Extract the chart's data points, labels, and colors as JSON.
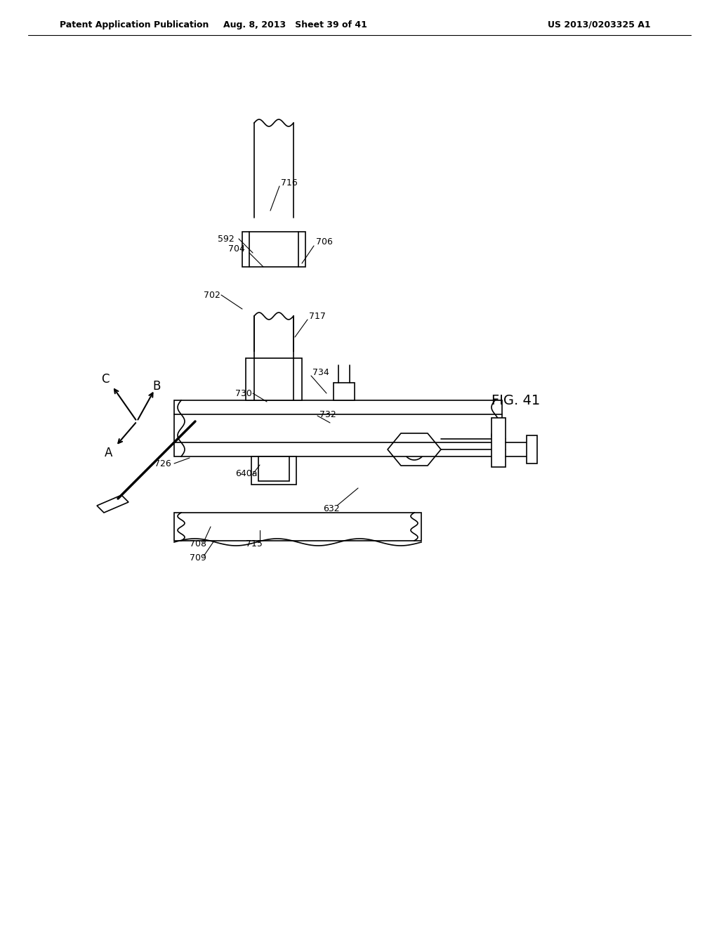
{
  "bg_color": "#ffffff",
  "header_left": "Patent Application Publication",
  "header_center": "Aug. 8, 2013   Sheet 39 of 41",
  "header_right": "US 2013/0203325 A1",
  "fig_label": "FIG. 41",
  "title_fontsize": 11,
  "line_color": "#000000",
  "lw": 1.2
}
